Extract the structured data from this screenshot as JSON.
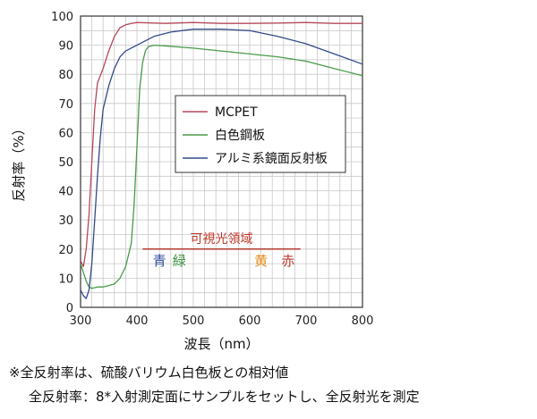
{
  "chart_data": {
    "type": "line",
    "title": "",
    "xlabel": "波長（nm）",
    "ylabel": "反射率（%）",
    "xlim": [
      300,
      800
    ],
    "ylim": [
      0,
      100
    ],
    "xticks": [
      300,
      400,
      500,
      600,
      700,
      800
    ],
    "yticks": [
      0,
      10,
      20,
      30,
      40,
      50,
      60,
      70,
      80,
      90,
      100
    ],
    "grid": true,
    "legend_position": "center",
    "series": [
      {
        "name": "MCPET",
        "color": "#b5475a",
        "points": [
          [
            300,
            16
          ],
          [
            305,
            14
          ],
          [
            310,
            20
          ],
          [
            315,
            32
          ],
          [
            320,
            50
          ],
          [
            325,
            68
          ],
          [
            330,
            77
          ],
          [
            340,
            82
          ],
          [
            350,
            88
          ],
          [
            360,
            93
          ],
          [
            370,
            96
          ],
          [
            380,
            97
          ],
          [
            390,
            97.5
          ],
          [
            400,
            97.8
          ],
          [
            450,
            97.5
          ],
          [
            500,
            97.8
          ],
          [
            550,
            97.5
          ],
          [
            600,
            97.5
          ],
          [
            650,
            97.6
          ],
          [
            700,
            97.8
          ],
          [
            750,
            97.5
          ],
          [
            800,
            97.5
          ]
        ]
      },
      {
        "name": "白色鋼板",
        "color": "#4a9a4a",
        "points": [
          [
            300,
            15
          ],
          [
            310,
            9
          ],
          [
            315,
            7
          ],
          [
            320,
            6.5
          ],
          [
            330,
            7
          ],
          [
            340,
            7
          ],
          [
            350,
            7.5
          ],
          [
            360,
            8
          ],
          [
            370,
            10
          ],
          [
            380,
            14
          ],
          [
            390,
            22
          ],
          [
            395,
            35
          ],
          [
            400,
            55
          ],
          [
            405,
            75
          ],
          [
            410,
            84
          ],
          [
            415,
            88
          ],
          [
            420,
            89.5
          ],
          [
            430,
            90
          ],
          [
            450,
            89.8
          ],
          [
            500,
            89
          ],
          [
            550,
            88
          ],
          [
            600,
            87
          ],
          [
            650,
            86
          ],
          [
            700,
            84.5
          ],
          [
            750,
            82
          ],
          [
            800,
            79.5
          ]
        ]
      },
      {
        "name": "アルミ系鏡面反射板",
        "color": "#334a8a",
        "points": [
          [
            300,
            6
          ],
          [
            305,
            4
          ],
          [
            310,
            3
          ],
          [
            315,
            6
          ],
          [
            320,
            15
          ],
          [
            325,
            30
          ],
          [
            330,
            45
          ],
          [
            335,
            58
          ],
          [
            340,
            68
          ],
          [
            350,
            76
          ],
          [
            360,
            82
          ],
          [
            370,
            86
          ],
          [
            380,
            88
          ],
          [
            400,
            90
          ],
          [
            430,
            93
          ],
          [
            460,
            94.5
          ],
          [
            500,
            95.5
          ],
          [
            550,
            95.5
          ],
          [
            600,
            95
          ],
          [
            650,
            93
          ],
          [
            700,
            90.5
          ],
          [
            750,
            87
          ],
          [
            800,
            83.5
          ]
        ]
      }
    ],
    "annotation": {
      "title": "可視光領域",
      "range": [
        410,
        690
      ],
      "level": 20,
      "colors": [
        {
          "label": "青",
          "color": "#2d4a9a",
          "x": 440
        },
        {
          "label": "緑",
          "color": "#3a8f3a",
          "x": 475
        },
        {
          "label": "黄",
          "color": "#e08a1a",
          "x": 620
        },
        {
          "label": "赤",
          "color": "#c0392b",
          "x": 668
        }
      ]
    }
  },
  "notes": {
    "line1": "※全反射率は、硫酸バリウム白色板との相対値",
    "line2": "全反射率：8*入射測定面にサンプルをセットし、全反射光を測定"
  }
}
